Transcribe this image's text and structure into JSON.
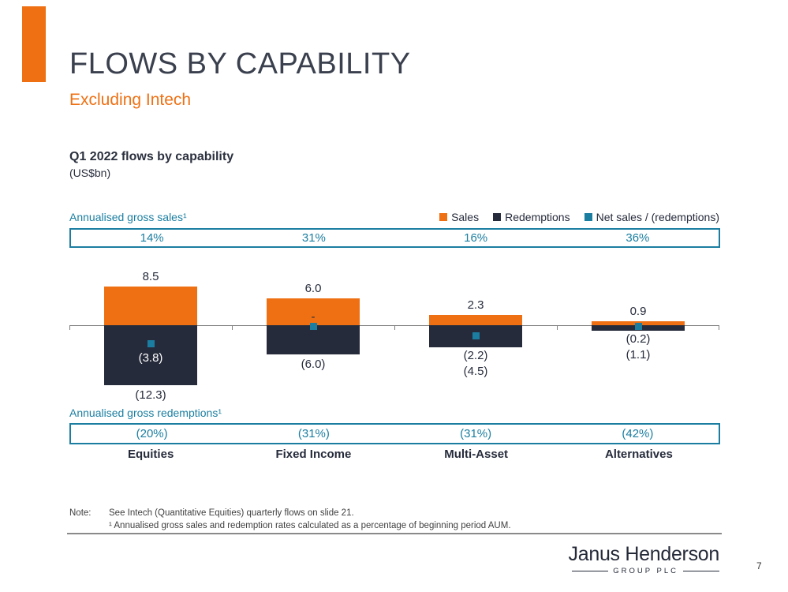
{
  "slide": {
    "title": "FLOWS BY CAPABILITY",
    "subtitle": "Excluding Intech",
    "page_number": "7"
  },
  "chart": {
    "title": "Q1 2022 flows by capability",
    "unit": "(US$bn)",
    "gross_sales_label": "Annualised gross sales¹",
    "gross_redemptions_label": "Annualised gross redemptions¹",
    "legend": [
      {
        "label": "Sales",
        "color": "#EF7013"
      },
      {
        "label": "Redemptions",
        "color": "#262B3B"
      },
      {
        "label": "Net sales / (redemptions)",
        "color": "#1B7EA1"
      }
    ]
  },
  "chart_data": {
    "type": "bar",
    "title": "Q1 2022 flows by capability (US$bn)",
    "categories": [
      "Equities",
      "Fixed Income",
      "Multi-Asset",
      "Alternatives"
    ],
    "series": [
      {
        "name": "Sales",
        "color": "#EF7013",
        "values": [
          8.5,
          6.0,
          2.3,
          0.9
        ],
        "labels": [
          "8.5",
          "6.0",
          "2.3",
          "0.9"
        ]
      },
      {
        "name": "Redemptions",
        "color": "#262B3B",
        "values": [
          -12.3,
          -6.0,
          -4.5,
          -1.1
        ],
        "labels": [
          "(12.3)",
          "(6.0)",
          "(4.5)",
          "(1.1)"
        ]
      },
      {
        "name": "Net sales / (redemptions)",
        "color": "#1B7EA1",
        "values": [
          -3.8,
          0.0,
          -2.2,
          -0.2
        ],
        "labels": [
          "(3.8)",
          "-",
          "(2.2)",
          "(0.2)"
        ],
        "label_placement": [
          "inside",
          "above-axis",
          "below-bar-stacked",
          "below-bar-stacked"
        ]
      }
    ],
    "annualised_gross_sales_pct": [
      "14%",
      "31%",
      "16%",
      "36%"
    ],
    "annualised_gross_redemptions_pct": [
      "(20%)",
      "(31%)",
      "(31%)",
      "(42%)"
    ],
    "axis": {
      "zero_line": true,
      "gridlines": false,
      "legend_position": "top-right"
    }
  },
  "notes": {
    "label": "Note:",
    "lines": [
      "See Intech (Quantitative Equities) quarterly flows on slide 21.",
      "¹ Annualised gross sales and redemption rates calculated as a percentage of beginning period AUM."
    ]
  },
  "footer": {
    "logo_name": "Janus Henderson",
    "logo_subtitle": "GROUP PLC"
  },
  "colors": {
    "accent_orange": "#EF7013",
    "dark_navy": "#262B3B",
    "teal": "#1B7EA1",
    "title_gray": "#3A404D",
    "axis_gray": "#7f7f7f"
  }
}
